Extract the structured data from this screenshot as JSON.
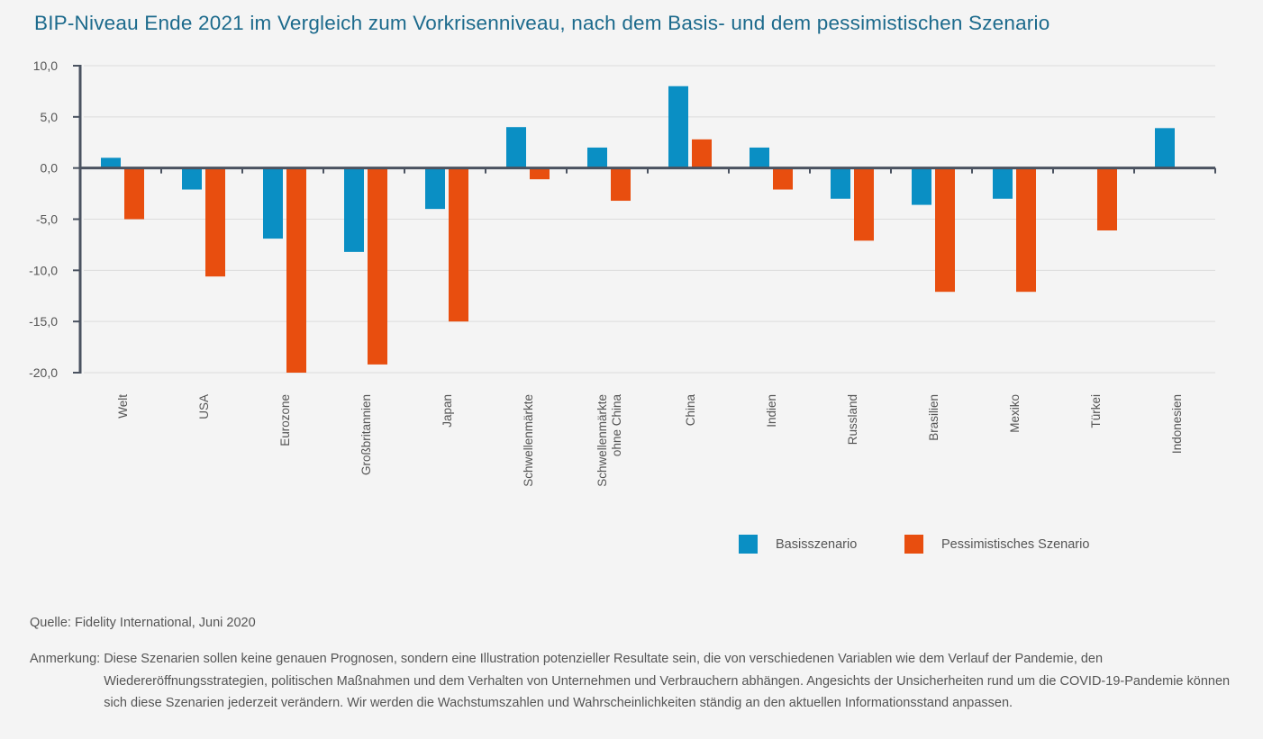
{
  "title": "BIP-Niveau Ende 2021 im Vergleich zum Vorkrisenniveau, nach dem Basis- und dem pessimistischen Szenario",
  "chart_data": {
    "type": "bar",
    "title": "BIP-Niveau Ende 2021 im Vergleich zum Vorkrisenniveau, nach dem Basis- und dem pessimistischen Szenario",
    "xlabel": "",
    "ylabel": "",
    "ylim": [
      -20,
      10
    ],
    "yticks": [
      10,
      5,
      0,
      -5,
      -10,
      -15,
      -20
    ],
    "ytick_labels": [
      "10,0",
      "5,0",
      "0,0",
      "-5,0",
      "-10,0",
      "-15,0",
      "-20,0"
    ],
    "grid": true,
    "legend_position": "bottom-right",
    "categories": [
      "Welt",
      "USA",
      "Eurozone",
      "Großbritannien",
      "Japan",
      "Schwellenmärkte",
      "Schwellenmärkte ohne China",
      "China",
      "Indien",
      "Russland",
      "Brasilien",
      "Mexiko",
      "Türkei",
      "Indonesien"
    ],
    "category_lines": [
      [
        "Welt"
      ],
      [
        "USA"
      ],
      [
        "Eurozone"
      ],
      [
        "Großbritannien"
      ],
      [
        "Japan"
      ],
      [
        "Schwellenmärkte"
      ],
      [
        "Schwellenmärkte",
        "ohne China"
      ],
      [
        "China"
      ],
      [
        "Indien"
      ],
      [
        "Russland"
      ],
      [
        "Brasilien"
      ],
      [
        "Mexiko"
      ],
      [
        "Türkei"
      ],
      [
        "Indonesien"
      ]
    ],
    "series": [
      {
        "name": "Basisszenario",
        "color": "#0a8fc4",
        "values": [
          1.0,
          -2.1,
          -6.9,
          -8.2,
          -4.0,
          4.0,
          2.0,
          8.0,
          2.0,
          -3.0,
          -3.6,
          -3.0,
          null,
          3.9
        ]
      },
      {
        "name": "Pessimistisches Szenario",
        "color": "#e84e0f",
        "values": [
          -5.0,
          -10.6,
          -20.0,
          -19.2,
          -15.0,
          -1.1,
          -3.2,
          2.8,
          -2.1,
          -7.1,
          -12.1,
          -12.1,
          -6.1,
          null
        ]
      }
    ]
  },
  "legend": [
    {
      "label": "Basisszenario",
      "color": "#0a8fc4"
    },
    {
      "label": "Pessimistisches Szenario",
      "color": "#e84e0f"
    }
  ],
  "footer": {
    "source": "Quelle: Fidelity International, Juni 2020",
    "note_label": "Anmerkung:",
    "note_text": "Diese Szenarien sollen keine genauen Prognosen, sondern eine Illustration potenzieller Resultate sein, die von verschiedenen Variablen wie dem Verlauf der Pandemie, den Wiedereröffnungsstrategien, politischen Maßnahmen und dem Verhalten von Unternehmen und Verbrauchern abhängen. Angesichts der Unsicherheiten rund um die COVID-19-Pandemie können sich diese Szenarien jederzeit verändern. Wir werden die Wachstumszahlen und Wahrscheinlichkeiten ständig an den aktuellen Informationsstand anpassen."
  }
}
